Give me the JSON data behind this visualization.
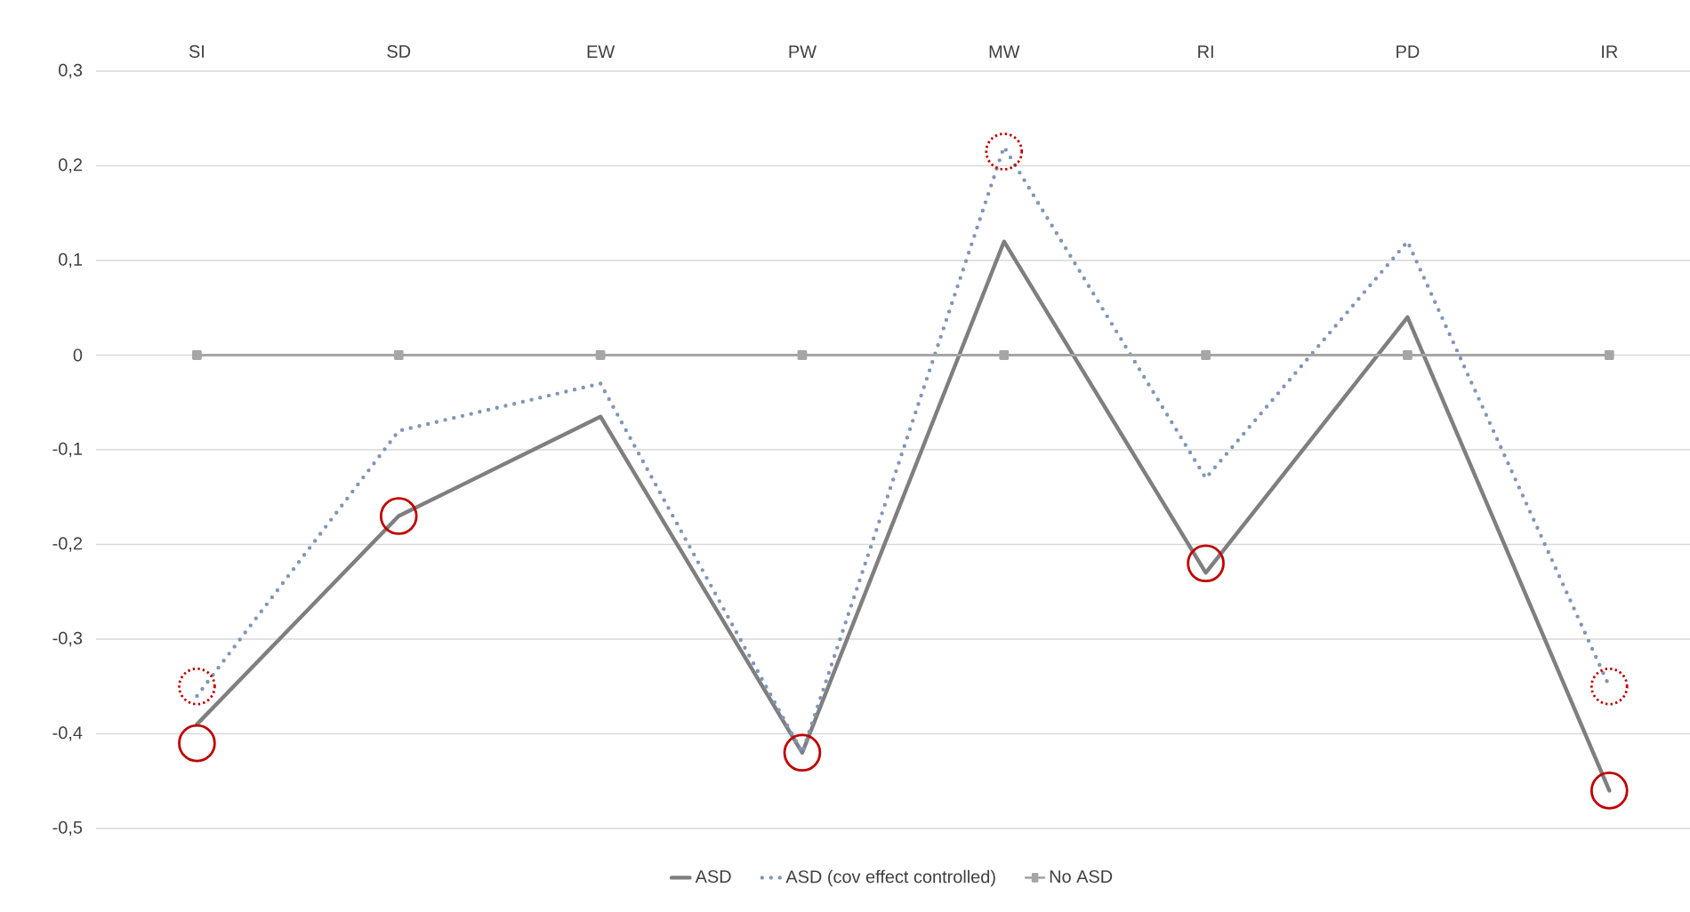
{
  "chart_data": {
    "type": "line",
    "categories": [
      "SI",
      "SD",
      "EW",
      "PW",
      "MW",
      "RI",
      "PD",
      "IR"
    ],
    "ylim": [
      -0.5,
      0.3
    ],
    "yticks": [
      {
        "value": -0.5,
        "label": "-0,5"
      },
      {
        "value": -0.4,
        "label": "-0,4"
      },
      {
        "value": -0.3,
        "label": "-0,3"
      },
      {
        "value": -0.2,
        "label": "-0,2"
      },
      {
        "value": -0.1,
        "label": "-0,1"
      },
      0,
      {
        "value": 0.1,
        "label": "0,1"
      },
      {
        "value": 0.2,
        "label": "0,2"
      },
      {
        "value": 0.3,
        "label": "0,3"
      }
    ],
    "grid": "y",
    "legend": "bottom",
    "series": [
      {
        "name": "ASD",
        "color": "#7f7f7f",
        "marker": "none",
        "line_style": "solid",
        "values": [
          -0.39,
          -0.17,
          -0.065,
          -0.42,
          0.12,
          -0.23,
          0.04,
          -0.46
        ]
      },
      {
        "name": "ASD (cov effect controlled)",
        "color": "#7f96b8",
        "marker": "none",
        "line_style": "dotted",
        "values": [
          -0.36,
          -0.08,
          -0.03,
          -0.42,
          0.22,
          -0.13,
          0.12,
          -0.35
        ]
      },
      {
        "name": "No ASD",
        "color": "#a6a6a6",
        "marker": "square",
        "line_style": "solid",
        "values": [
          0,
          0,
          0,
          0,
          0,
          0,
          0,
          0
        ]
      },
      {
        "type": "scatter",
        "color": "#c00000",
        "marker": "circle",
        "line_style": "solid",
        "values": [
          -0.41,
          -0.17,
          null,
          -0.42,
          null,
          -0.22,
          null,
          -0.46
        ]
      },
      {
        "type": "scatter",
        "color": "#c00000",
        "marker": "circle",
        "line_style": "dotted",
        "values": [
          -0.35,
          null,
          null,
          null,
          0.215,
          null,
          null,
          -0.35
        ]
      }
    ]
  }
}
